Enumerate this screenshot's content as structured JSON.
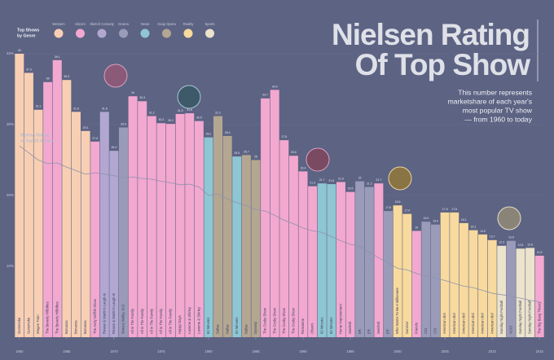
{
  "chart_data": {
    "type": "bar",
    "title": [
      "Nielsen Rating",
      "Of Top Show"
    ],
    "subtitle": [
      "This number represents",
      "marketshare of each year's",
      "most popular TV show",
      "— from 1960 to today"
    ],
    "legend_title": [
      "Top Shows",
      "by Genre"
    ],
    "legend": [
      {
        "name": "Western",
        "color": "#f8cfb3"
      },
      {
        "name": "Sitcom",
        "color": "#f3a8d0"
      },
      {
        "name": "Sketch Comedy",
        "color": "#b2a7d0"
      },
      {
        "name": "Drama",
        "color": "#9a9bb9"
      },
      {
        "name": "News",
        "color": "#8fc6d3"
      },
      {
        "name": "Soap Opera",
        "color": "#b4a792"
      },
      {
        "name": "Reality",
        "color": "#f8da9e"
      },
      {
        "name": "Sports",
        "color": "#ebe3cb"
      }
    ],
    "categories": [
      "Gunsmoke",
      "Gunsmoke",
      "Wagon Train",
      "The Beverly Hillbillies",
      "The Beverly Hillbillies",
      "Bonanza",
      "Bonanza",
      "Bonanza",
      "The Andy Griffith Show",
      "Rowan & Martin's Laugh-In",
      "Rowan & Martin's Laugh-In",
      "Marcus Welby, M.D.",
      "All In The Family",
      "All In The Family",
      "All In The Family",
      "All In The Family",
      "All In The Family",
      "Happy Days",
      "Laverne & Shirley",
      "Laverne & Shirley",
      "60 Minutes",
      "Dallas",
      "Dallas",
      "60 Minutes",
      "Dallas",
      "Dynasty",
      "The Cosby Show",
      "The Cosby Show",
      "The Cosby Show",
      "The Cosby Show",
      "Roseanne",
      "Cheers",
      "60 Minutes",
      "60 Minutes",
      "Home Improvement",
      "Seinfeld",
      "ER",
      "ER",
      "Seinfeld",
      "ER",
      "Who Wants To Be A Millionaire",
      "Survivor",
      "Friends",
      "CSI",
      "CSI",
      "American Idol",
      "American Idol",
      "American Idol",
      "American Idol",
      "American Idol",
      "American Idol",
      "Sunday Night Football",
      "NCIS",
      "Sunday Night Football",
      "Sunday Night Football",
      "The Big Bang Theory"
    ],
    "x": [
      1960,
      1961,
      1962,
      1963,
      1964,
      1965,
      1966,
      1967,
      1968,
      1969,
      1970,
      1971,
      1972,
      1973,
      1974,
      1975,
      1976,
      1977,
      1978,
      1979,
      1980,
      1981,
      1982,
      1983,
      1984,
      1985,
      1986,
      1987,
      1988,
      1989,
      1990,
      1991,
      1992,
      1993,
      1994,
      1995,
      1996,
      1997,
      1998,
      1999,
      2000,
      2001,
      2002,
      2003,
      2004,
      2005,
      2006,
      2007,
      2008,
      2009,
      2010,
      2011,
      2012,
      2013,
      2014,
      2015
    ],
    "values": [
      40.0,
      37.3,
      32.1,
      36.0,
      39.1,
      36.3,
      31.8,
      29.1,
      27.6,
      31.8,
      26.3,
      29.6,
      34.0,
      33.3,
      31.2,
      30.2,
      30.1,
      31.5,
      31.6,
      30.5,
      28.2,
      31.2,
      28.4,
      25.5,
      25.7,
      25.0,
      33.7,
      34.9,
      27.8,
      25.6,
      23.4,
      21.3,
      21.7,
      21.6,
      21.9,
      20.5,
      22.0,
      21.2,
      21.7,
      17.8,
      18.6,
      17.4,
      15.0,
      16.3,
      15.9,
      17.6,
      17.6,
      16.1,
      15.1,
      14.5,
      13.7,
      12.9,
      13.6,
      12.5,
      12.6,
      11.5
    ],
    "genre": [
      0,
      0,
      0,
      1,
      1,
      0,
      0,
      0,
      1,
      2,
      2,
      3,
      1,
      1,
      1,
      1,
      1,
      1,
      1,
      1,
      4,
      5,
      5,
      4,
      5,
      5,
      1,
      1,
      1,
      1,
      1,
      1,
      4,
      4,
      1,
      1,
      3,
      3,
      1,
      3,
      6,
      6,
      1,
      3,
      3,
      6,
      6,
      6,
      6,
      6,
      6,
      7,
      3,
      7,
      7,
      1
    ],
    "median": {
      "label": [
        "Median Rating",
        "of Top 20 Shows"
      ],
      "color": "#8e92ab",
      "values": [
        27.0,
        26.0,
        25.0,
        24.5,
        24.6,
        24.0,
        23.5,
        23.0,
        23.2,
        23.0,
        22.8,
        22.5,
        22.6,
        22.4,
        22.3,
        22.0,
        21.8,
        21.5,
        21.6,
        21.2,
        20.0,
        20.2,
        19.5,
        19.0,
        18.6,
        18.0,
        17.8,
        17.2,
        16.5,
        16.0,
        15.4,
        15.0,
        14.8,
        14.2,
        13.6,
        13.1,
        12.8,
        12.0,
        11.2,
        10.5,
        9.7,
        9.5,
        9.0,
        8.6,
        8.3,
        8.0,
        7.6,
        7.2,
        7.0,
        6.6,
        6.2,
        6.0,
        5.8,
        5.5,
        5.2,
        5.0
      ]
    },
    "xlim": [
      1959.5,
      2015.5
    ],
    "xticks": [
      1960,
      1965,
      1970,
      1975,
      1980,
      1985,
      1990,
      1995,
      2000,
      2005,
      2010,
      2015
    ],
    "ylim": [
      0,
      40
    ],
    "yticks": [
      {
        "value": 10,
        "label": "10%"
      },
      {
        "value": 20,
        "label": "20%"
      },
      {
        "value": 30,
        "label": "30%"
      },
      {
        "value": 40,
        "label": "40%"
      }
    ],
    "grid": true
  }
}
